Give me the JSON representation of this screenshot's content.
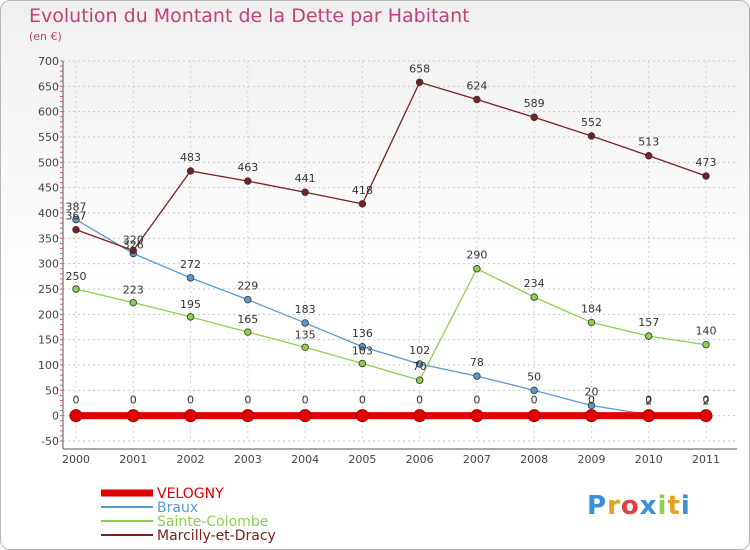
{
  "title": "Evolution du Montant de la Dette par Habitant",
  "unit": "(en €)",
  "logo": "Proxiti",
  "chart_data": {
    "type": "line",
    "categories": [
      "2000",
      "2001",
      "2002",
      "2003",
      "2004",
      "2005",
      "2006",
      "2007",
      "2008",
      "2009",
      "2010",
      "2011"
    ],
    "ylim": [
      -50,
      700
    ],
    "yticks": [
      -50,
      0,
      50,
      100,
      150,
      200,
      250,
      300,
      350,
      400,
      450,
      500,
      550,
      600,
      650,
      700
    ],
    "grid": true,
    "legend_position": "bottom-left",
    "series": [
      {
        "name": "VELOGNY",
        "color": "#e00000",
        "values": [
          0,
          0,
          0,
          0,
          0,
          0,
          0,
          0,
          0,
          0,
          0,
          0
        ]
      },
      {
        "name": "Braux",
        "color": "#5a9ad0",
        "values": [
          387,
          320,
          272,
          229,
          183,
          136,
          102,
          78,
          50,
          20,
          2,
          2
        ]
      },
      {
        "name": "Sainte-Colombe",
        "color": "#8ed04e",
        "values": [
          250,
          223,
          195,
          165,
          135,
          103,
          70,
          290,
          234,
          184,
          157,
          140
        ]
      },
      {
        "name": "Marcilly-et-Dracy",
        "color": "#7a2020",
        "values": [
          367,
          326,
          483,
          463,
          441,
          418,
          658,
          624,
          589,
          552,
          513,
          473
        ]
      }
    ]
  }
}
